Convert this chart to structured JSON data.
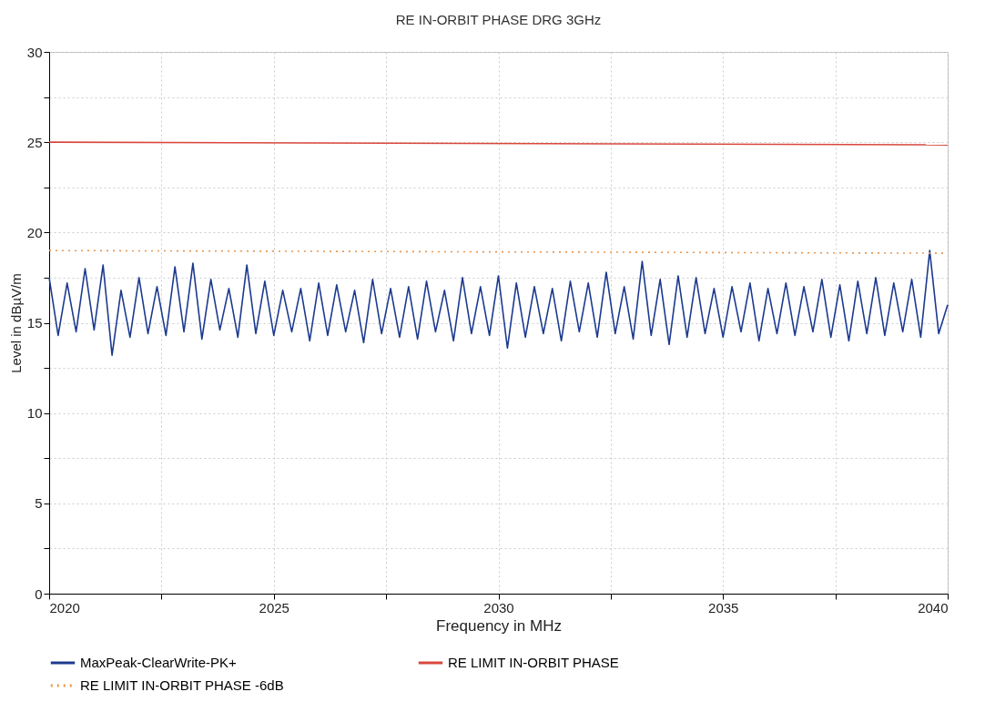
{
  "chart_data": {
    "type": "line",
    "title": "RE IN-ORBIT PHASE DRG 3GHz",
    "xlabel": "Frequency in MHz",
    "ylabel": "Level in dBµV/m",
    "xlim": [
      2020,
      2040
    ],
    "ylim": [
      0,
      30
    ],
    "xticks": [
      2020,
      {
        "value": 2022.5,
        "label": null
      },
      2025,
      {
        "value": 2027.5,
        "label": null
      },
      2030,
      {
        "value": 2032.5,
        "label": null
      },
      2035,
      {
        "value": 2037.5,
        "label": null
      },
      2040
    ],
    "yticks": [
      0,
      {
        "value": 2.5,
        "label": null
      },
      5,
      {
        "value": 7.5,
        "label": null
      },
      10,
      {
        "value": 12.5,
        "label": null
      },
      15,
      {
        "value": 17.5,
        "label": null
      },
      20,
      {
        "value": 22.5,
        "label": null
      },
      25,
      {
        "value": 27.5,
        "label": null
      },
      30
    ],
    "grid": true,
    "legend": "bottom",
    "marker": "none",
    "series": [
      {
        "name": "MaxPeak-ClearWrite-PK+",
        "color": "#1c3a8e",
        "line_style": "solid",
        "x": [
          2020.0,
          2020.2,
          2020.4,
          2020.6,
          2020.8,
          2021.0,
          2021.2,
          2021.4,
          2021.6,
          2021.8,
          2022.0,
          2022.2,
          2022.4,
          2022.6,
          2022.8,
          2023.0,
          2023.2,
          2023.4,
          2023.6,
          2023.8,
          2024.0,
          2024.2,
          2024.4,
          2024.6,
          2024.8,
          2025.0,
          2025.2,
          2025.4,
          2025.6,
          2025.8,
          2026.0,
          2026.2,
          2026.4,
          2026.6,
          2026.8,
          2027.0,
          2027.2,
          2027.4,
          2027.6,
          2027.8,
          2028.0,
          2028.2,
          2028.4,
          2028.6,
          2028.8,
          2029.0,
          2029.2,
          2029.4,
          2029.6,
          2029.8,
          2030.0,
          2030.2,
          2030.4,
          2030.6,
          2030.8,
          2031.0,
          2031.2,
          2031.4,
          2031.6,
          2031.8,
          2032.0,
          2032.2,
          2032.4,
          2032.6,
          2032.8,
          2033.0,
          2033.2,
          2033.4,
          2033.6,
          2033.8,
          2034.0,
          2034.2,
          2034.4,
          2034.6,
          2034.8,
          2035.0,
          2035.2,
          2035.4,
          2035.6,
          2035.8,
          2036.0,
          2036.2,
          2036.4,
          2036.6,
          2036.8,
          2037.0,
          2037.2,
          2037.4,
          2037.6,
          2037.8,
          2038.0,
          2038.2,
          2038.4,
          2038.6,
          2038.8,
          2039.0,
          2039.2,
          2039.4,
          2039.6,
          2039.8,
          2040.0
        ],
        "values": [
          17.5,
          14.3,
          17.2,
          14.5,
          18.0,
          14.6,
          18.2,
          13.2,
          16.8,
          14.2,
          17.5,
          14.4,
          17.0,
          14.3,
          18.1,
          14.5,
          18.3,
          14.1,
          17.4,
          14.6,
          16.9,
          14.2,
          18.2,
          14.4,
          17.3,
          14.3,
          16.8,
          14.5,
          16.9,
          14.0,
          17.2,
          14.3,
          17.1,
          14.5,
          16.8,
          13.9,
          17.4,
          14.4,
          16.9,
          14.2,
          17.0,
          14.1,
          17.3,
          14.5,
          16.8,
          14.0,
          17.5,
          14.4,
          17.0,
          14.3,
          17.6,
          13.6,
          17.2,
          14.2,
          17.0,
          14.4,
          16.9,
          14.0,
          17.3,
          14.5,
          17.2,
          14.2,
          17.8,
          14.4,
          17.0,
          14.1,
          18.4,
          14.3,
          17.4,
          13.8,
          17.6,
          14.2,
          17.5,
          14.4,
          16.9,
          14.2,
          17.0,
          14.5,
          17.2,
          14.0,
          16.9,
          14.4,
          17.2,
          14.3,
          17.0,
          14.5,
          17.4,
          14.2,
          17.1,
          14.0,
          17.3,
          14.4,
          17.5,
          14.3,
          17.2,
          14.5,
          17.4,
          14.2,
          19.0,
          14.4,
          16.0
        ]
      },
      {
        "name": "RE LIMIT IN-ORBIT PHASE",
        "color": "#d9473c",
        "line_style": "solid",
        "x": [
          2020,
          2040
        ],
        "values": [
          25,
          24.85
        ]
      },
      {
        "name": "RE LIMIT IN-ORBIT PHASE -6dB",
        "color": "#e8964f",
        "line_style": "dotted",
        "x": [
          2020,
          2040
        ],
        "values": [
          19,
          18.85
        ]
      }
    ]
  }
}
